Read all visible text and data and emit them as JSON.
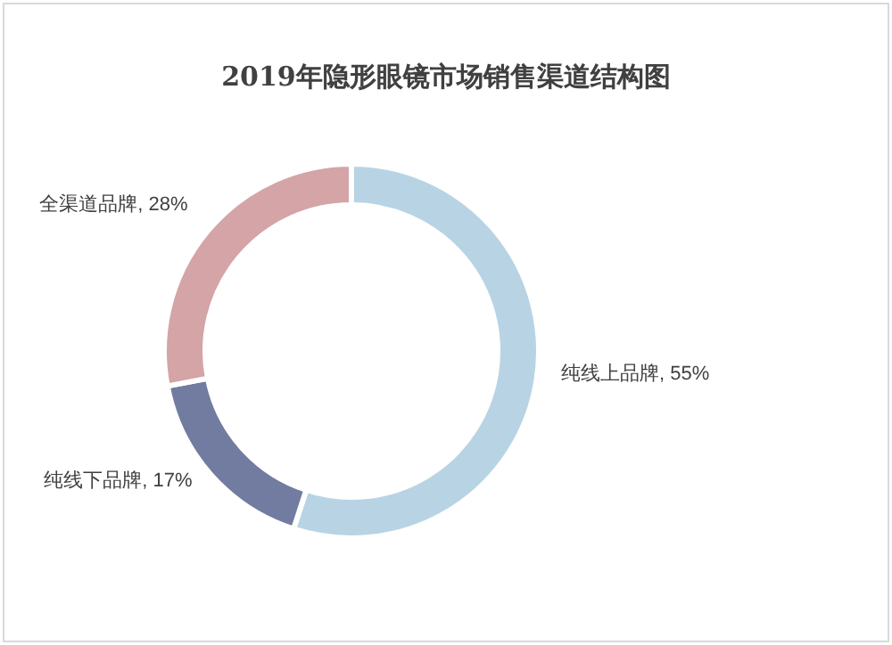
{
  "chart_data": {
    "type": "donut",
    "title": "2019年隐形眼镜市场销售渠道结构图",
    "categories": [
      "纯线上品牌",
      "纯线下品牌",
      "全渠道品牌"
    ],
    "values": [
      55,
      17,
      28
    ],
    "colors": [
      "#b8d4e4",
      "#727ba0",
      "#d4a4a6"
    ],
    "value_labels": [
      "55%",
      "17%",
      "28%"
    ]
  }
}
